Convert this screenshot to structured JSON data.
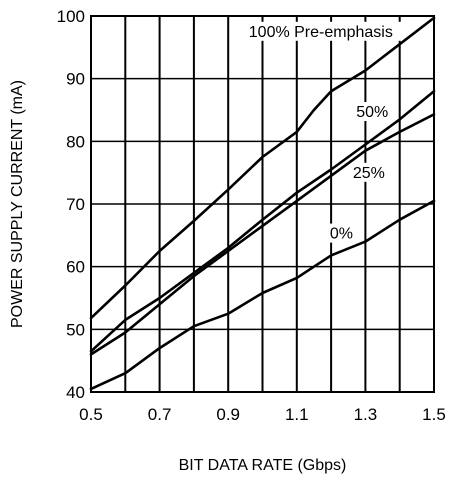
{
  "chart_data": {
    "type": "line",
    "xlabel": "BIT DATA RATE (Gbps)",
    "ylabel": "POWER SUPPLY CURRENT (mA)",
    "xlim": [
      0.5,
      1.5
    ],
    "ylim": [
      40,
      100
    ],
    "xticks": [
      0.5,
      0.7,
      0.9,
      1.1,
      1.3,
      1.5
    ],
    "xtick_labels": [
      "0.5",
      "0.7",
      "0.9",
      "1.1",
      "1.3",
      "1.5"
    ],
    "yticks": [
      40,
      50,
      60,
      70,
      80,
      90,
      100
    ],
    "ytick_labels": [
      "40",
      "50",
      "60",
      "70",
      "80",
      "90",
      "100"
    ],
    "xgrid": [
      0.6,
      0.7,
      0.8,
      0.9,
      1.0,
      1.1,
      1.2,
      1.3,
      1.4
    ],
    "ygrid": [
      50,
      60,
      70,
      80,
      90
    ],
    "series": [
      {
        "name": "100% Pre-emphasis",
        "x": [
          0.5,
          0.6,
          0.7,
          0.8,
          0.9,
          1.0,
          1.1,
          1.15,
          1.2,
          1.3,
          1.4,
          1.5
        ],
        "y": [
          51.8,
          57.0,
          62.5,
          67.3,
          72.3,
          77.5,
          81.5,
          85.0,
          88.0,
          91.3,
          95.5,
          99.7
        ]
      },
      {
        "name": "50%",
        "x": [
          0.5,
          0.6,
          0.7,
          0.8,
          0.9,
          1.0,
          1.1,
          1.2,
          1.3,
          1.4,
          1.5
        ],
        "y": [
          46.5,
          51.5,
          55.0,
          59.0,
          63.0,
          67.5,
          71.8,
          75.5,
          79.5,
          83.5,
          88.0
        ]
      },
      {
        "name": "25%",
        "x": [
          0.5,
          0.6,
          0.7,
          0.8,
          0.9,
          1.0,
          1.1,
          1.2,
          1.3,
          1.4,
          1.5
        ],
        "y": [
          46.0,
          49.5,
          54.0,
          58.5,
          62.5,
          66.5,
          70.5,
          74.5,
          78.5,
          81.5,
          84.3
        ]
      },
      {
        "name": "0%",
        "x": [
          0.5,
          0.6,
          0.7,
          0.8,
          0.9,
          1.0,
          1.1,
          1.2,
          1.3,
          1.4,
          1.5
        ],
        "y": [
          40.5,
          43.0,
          47.0,
          50.5,
          52.5,
          55.8,
          58.2,
          61.8,
          64.0,
          67.5,
          70.5
        ]
      }
    ],
    "annotations": [
      {
        "text": "100% Pre-emphasis",
        "x": 1.17,
        "y": 97.0
      },
      {
        "text": "50%",
        "x": 1.32,
        "y": 84.2
      },
      {
        "text": "25%",
        "x": 1.31,
        "y": 74.5
      },
      {
        "text": "0%",
        "x": 1.23,
        "y": 64.8
      }
    ]
  }
}
